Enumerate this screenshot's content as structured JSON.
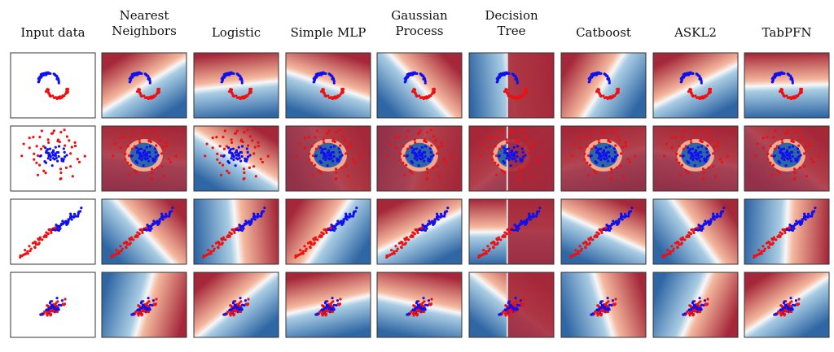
{
  "columns": [
    {
      "lines": [
        "Input data"
      ]
    },
    {
      "lines": [
        "Nearest",
        "Neighbors"
      ]
    },
    {
      "lines": [
        "Logistic"
      ]
    },
    {
      "lines": [
        "Simple MLP"
      ]
    },
    {
      "lines": [
        "Gaussian",
        "Process"
      ]
    },
    {
      "lines": [
        "Decision",
        "Tree"
      ]
    },
    {
      "lines": [
        "Catboost"
      ]
    },
    {
      "lines": [
        "ASKL2"
      ]
    },
    {
      "lines": [
        "TabPFN"
      ]
    }
  ]
}
